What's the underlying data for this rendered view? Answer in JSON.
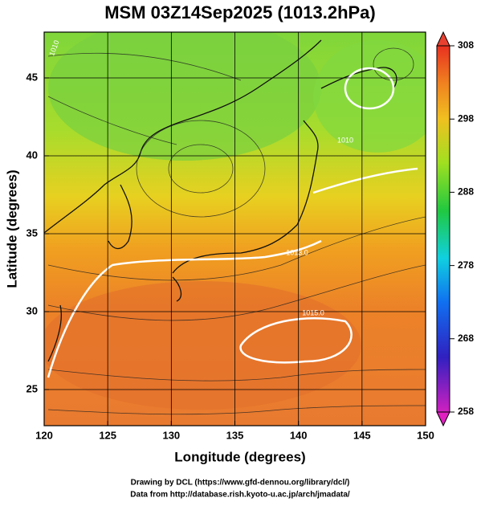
{
  "header": {
    "title": "MSM 03Z14Sep2025 (1013.2hPa)"
  },
  "map": {
    "x_label": "Longitude (degrees)",
    "y_label": "Latitude  (degrees)",
    "x_ticks": [
      "120",
      "125",
      "130",
      "135",
      "140",
      "145",
      "150"
    ],
    "y_ticks": [
      "25",
      "30",
      "35",
      "40",
      "45"
    ],
    "contour_labels": [
      "1013.0",
      "1015.0",
      "1010",
      "1010"
    ]
  },
  "colorbar": {
    "ticks": [
      "258",
      "268",
      "278",
      "288",
      "298",
      "308"
    ]
  },
  "footer": {
    "lines": [
      "Drawing by DCL (https://www.gfd-dennou.org/library/dcl/)",
      "Data from http://database.rish.kyoto-u.ac.jp/arch/jmadata/"
    ]
  }
}
